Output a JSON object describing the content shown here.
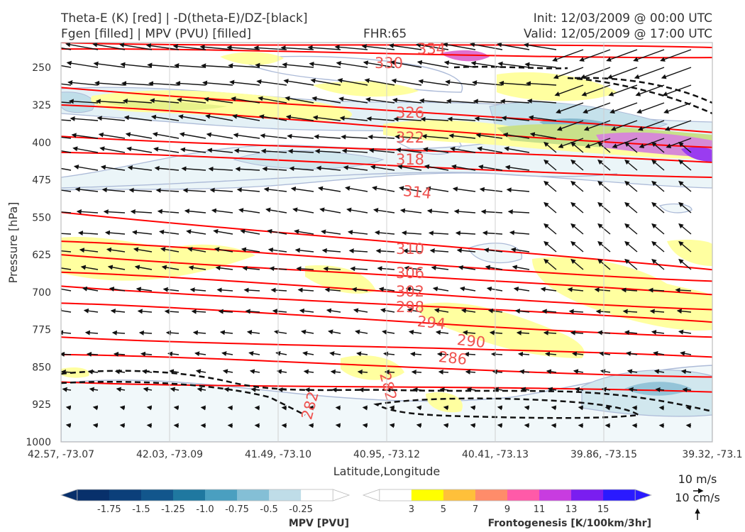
{
  "header": {
    "title_left_1": "Theta-E (K) [red] | -D(theta-E)/DZ-[black]",
    "title_left_2": "Fgen [filled] | MPV (PVU) [filled]",
    "fhr": "FHR:65",
    "init": "Init: 12/03/2009 @ 00:00 UTC",
    "valid": "Valid: 12/05/2009 @ 17:00 UTC"
  },
  "chart_data": {
    "type": "cross-section",
    "xlabel": "Latitude,Longitude",
    "ylabel": "Pressure [hPa]",
    "x_ticks": [
      "42.57, -73.07",
      "42.03, -73.09",
      "41.49, -73.10",
      "40.95, -73.12",
      "40.41, -73.13",
      "39.86, -73.15",
      "39.32, -73.1"
    ],
    "y_ticks": [
      "250",
      "325",
      "400",
      "475",
      "550",
      "625",
      "700",
      "775",
      "850",
      "925",
      "1000"
    ],
    "ylim": [
      1000,
      200
    ],
    "theta_e_contours": [
      {
        "label": "334",
        "p_left": 200,
        "p_right": 210
      },
      {
        "label": "330",
        "p_left": 213,
        "p_right": 230
      },
      {
        "label": "326",
        "p_left": 290,
        "p_right": 380
      },
      {
        "label": "322",
        "p_left": 325,
        "p_right": 410
      },
      {
        "label": "318",
        "p_left": 388,
        "p_right": 440
      },
      {
        "label": "314",
        "p_left": 420,
        "p_right": 470
      },
      {
        "label": "310",
        "p_left": 540,
        "p_right": 655
      },
      {
        "label": "306",
        "p_left": 598,
        "p_right": 678
      },
      {
        "label": "302",
        "p_left": 625,
        "p_right": 705
      },
      {
        "label": "298",
        "p_left": 660,
        "p_right": 735
      },
      {
        "label": "294",
        "p_left": 688,
        "p_right": 760
      },
      {
        "label": "290",
        "p_left": 722,
        "p_right": 790
      },
      {
        "label": "286",
        "p_left": 790,
        "p_right": 830
      },
      {
        "label": "282",
        "p_left": 825,
        "p_right": 870
      },
      {
        "label": "282",
        "p_left": 880,
        "p_right": 900
      }
    ],
    "mpv_colorbar": {
      "title": "MPV [PVU]",
      "ticks": [
        "-1.75",
        "-1.5",
        "-1.25",
        "-1.0",
        "-0.75",
        "-0.5",
        "-0.25"
      ],
      "colors": [
        "#08306b",
        "#0b3f7a",
        "#12568c",
        "#1f78a0",
        "#4a9fc0",
        "#84bfd6",
        "#bfdde8",
        "#ffffff"
      ]
    },
    "fgen_colorbar": {
      "title": "Frontogenesis [K/100km/3hr]",
      "ticks": [
        "3",
        "5",
        "7",
        "9",
        "11",
        "13",
        "15"
      ],
      "colors": [
        "#ffffff",
        "#ffff00",
        "#ffc03a",
        "#ff8c6a",
        "#ff5aa8",
        "#c83ce0",
        "#7a1ef0",
        "#2a1aff"
      ]
    },
    "quiver_keys": [
      "10 m/s",
      "10 cm/s"
    ]
  }
}
